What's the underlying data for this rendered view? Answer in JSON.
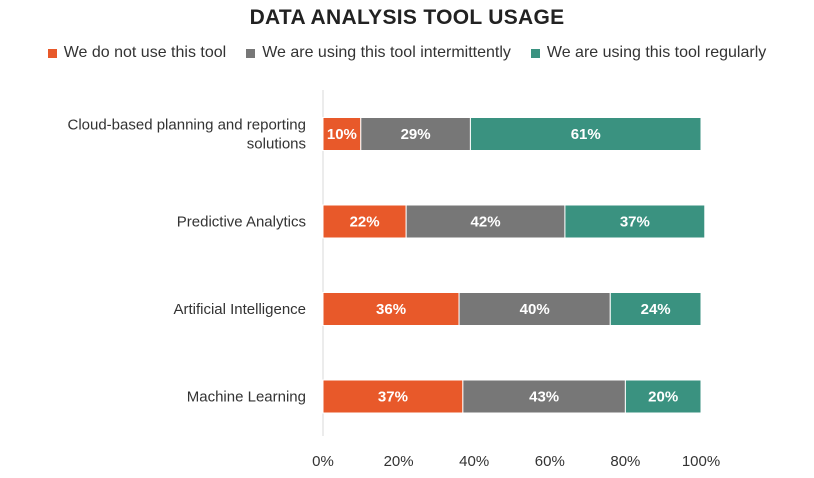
{
  "chart_data": {
    "type": "bar",
    "orientation": "horizontal",
    "stacked": true,
    "title": "DATA ANALYSIS TOOL USAGE",
    "categories": [
      [
        "Cloud-based planning and reporting",
        "solutions"
      ],
      [
        "Predictive Analytics"
      ],
      [
        "Artificial Intelligence"
      ],
      [
        "Machine Learning"
      ]
    ],
    "series": [
      {
        "name": "We do not use this tool",
        "color": "#E8592A",
        "values": [
          10,
          22,
          36,
          37
        ],
        "labels": [
          "10%",
          "22%",
          "36%",
          "37%"
        ]
      },
      {
        "name": "We are using this tool intermittently",
        "color": "#777777",
        "values": [
          29,
          42,
          40,
          43
        ],
        "labels": [
          "29%",
          "42%",
          "40%",
          "43%"
        ]
      },
      {
        "name": "We are using this tool regularly",
        "color": "#3A9280",
        "values": [
          61,
          37,
          24,
          20
        ],
        "labels": [
          "61%",
          "37%",
          "24%",
          "20%"
        ]
      }
    ],
    "x_ticks": [
      "0%",
      "20%",
      "40%",
      "60%",
      "80%",
      "100%"
    ],
    "xlim": [
      0,
      100
    ],
    "legend_position": "top",
    "grid": false
  }
}
